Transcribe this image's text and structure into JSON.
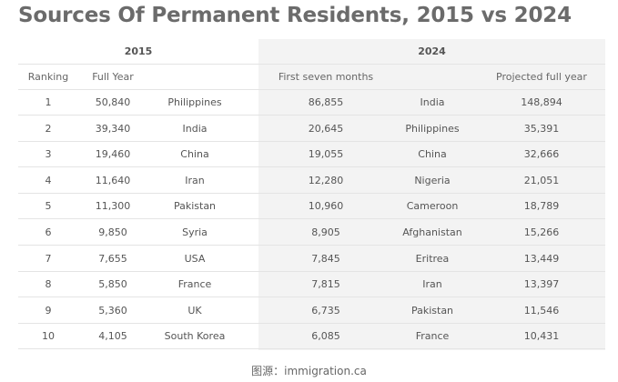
{
  "title": "Sources Of Permanent Residents, 2015 vs 2024",
  "source": "图源：immigration.ca",
  "colors": {
    "title": "#6b6b6b",
    "panel_2024": "#f3f3f3",
    "row_border": "#e4e4e4"
  },
  "chart_data": {
    "type": "table",
    "title": "Sources Of Permanent Residents, 2015 vs 2024",
    "groups": [
      "2015",
      "2024"
    ],
    "columns": [
      "Ranking",
      "Full Year",
      "",
      "First seven months",
      "",
      "Projected full year"
    ],
    "rows": [
      [
        "1",
        "50,840",
        "Philippines",
        "86,855",
        "India",
        "148,894"
      ],
      [
        "2",
        "39,340",
        "India",
        "20,645",
        "Philippines",
        "35,391"
      ],
      [
        "3",
        "19,460",
        "China",
        "19,055",
        "China",
        "32,666"
      ],
      [
        "4",
        "11,640",
        "Iran",
        "12,280",
        "Nigeria",
        "21,051"
      ],
      [
        "5",
        "11,300",
        "Pakistan",
        "10,960",
        "Cameroon",
        "18,789"
      ],
      [
        "6",
        "9,850",
        "Syria",
        "8,905",
        "Afghanistan",
        "15,266"
      ],
      [
        "7",
        "7,655",
        "USA",
        "7,845",
        "Eritrea",
        "13,449"
      ],
      [
        "8",
        "5,850",
        "France",
        "7,815",
        "Iran",
        "13,397"
      ],
      [
        "9",
        "5,360",
        "UK",
        "6,735",
        "Pakistan",
        "11,546"
      ],
      [
        "10",
        "4,105",
        "South Korea",
        "6,085",
        "France",
        "10,431"
      ]
    ]
  }
}
